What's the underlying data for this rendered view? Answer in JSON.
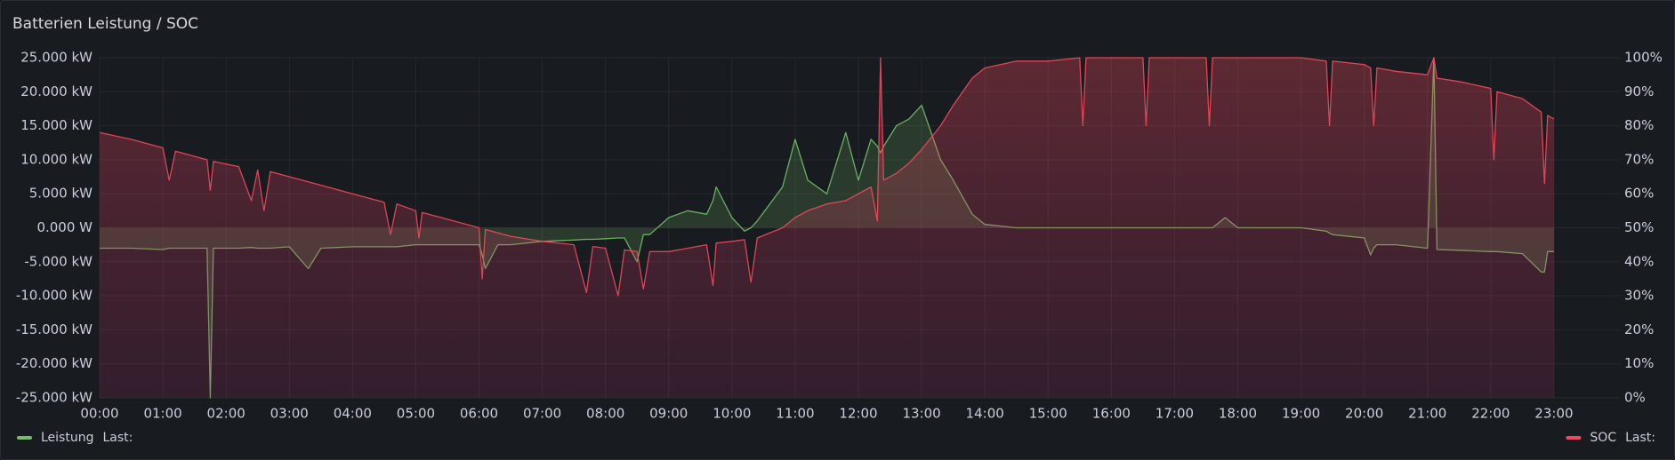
{
  "chart_data": {
    "type": "line",
    "title": "Batterien Leistung / SOC",
    "legend_calc": "Last:",
    "grid": true,
    "x": [
      0,
      0.5,
      1,
      1.1,
      1.2,
      1.7,
      1.75,
      1.8,
      2.2,
      2.4,
      2.5,
      2.6,
      2.7,
      3,
      3.3,
      3.5,
      4,
      4.5,
      4.6,
      4.7,
      5,
      5.05,
      5.1,
      5.5,
      6,
      6.05,
      6.1,
      6.3,
      6.5,
      7,
      7.5,
      7.7,
      7.8,
      8,
      8.2,
      8.3,
      8.5,
      8.6,
      8.7,
      9,
      9.3,
      9.6,
      9.7,
      9.75,
      10,
      10.2,
      10.3,
      10.4,
      10.8,
      11,
      11.2,
      11.5,
      11.8,
      12,
      12.2,
      12.3,
      12.35,
      12.4,
      12.6,
      12.8,
      13,
      13.3,
      13.5,
      13.8,
      14,
      14.5,
      15,
      15.5,
      15.55,
      15.6,
      16.5,
      16.55,
      16.6,
      17.5,
      17.55,
      17.6,
      17.8,
      18,
      19,
      19.4,
      19.45,
      19.5,
      20,
      20.1,
      20.15,
      20.2,
      20.5,
      21,
      21.1,
      21.15,
      21.5,
      22,
      22.05,
      22.1,
      22.5,
      22.8,
      22.85,
      22.9,
      23
    ],
    "xlim": [
      0,
      24
    ],
    "xticks": [
      {
        "value": 0,
        "label": "00:00"
      },
      {
        "value": 1,
        "label": "01:00"
      },
      {
        "value": 2,
        "label": "02:00"
      },
      {
        "value": 3,
        "label": "03:00"
      },
      {
        "value": 4,
        "label": "04:00"
      },
      {
        "value": 5,
        "label": "05:00"
      },
      {
        "value": 6,
        "label": "06:00"
      },
      {
        "value": 7,
        "label": "07:00"
      },
      {
        "value": 8,
        "label": "08:00"
      },
      {
        "value": 9,
        "label": "09:00"
      },
      {
        "value": 10,
        "label": "10:00"
      },
      {
        "value": 11,
        "label": "11:00"
      },
      {
        "value": 12,
        "label": "12:00"
      },
      {
        "value": 13,
        "label": "13:00"
      },
      {
        "value": 14,
        "label": "14:00"
      },
      {
        "value": 15,
        "label": "15:00"
      },
      {
        "value": 16,
        "label": "16:00"
      },
      {
        "value": 17,
        "label": "17:00"
      },
      {
        "value": 18,
        "label": "18:00"
      },
      {
        "value": 19,
        "label": "19:00"
      },
      {
        "value": 20,
        "label": "20:00"
      },
      {
        "value": 21,
        "label": "21:00"
      },
      {
        "value": 22,
        "label": "22:00"
      },
      {
        "value": 23,
        "label": "23:00"
      }
    ],
    "ylim": [
      -25000,
      25000
    ],
    "yticks": [
      {
        "value": 25000,
        "label": "25.000 kW"
      },
      {
        "value": 20000,
        "label": "20.000 kW"
      },
      {
        "value": 15000,
        "label": "15.000 kW"
      },
      {
        "value": 10000,
        "label": "10.000 kW"
      },
      {
        "value": 5000,
        "label": "5.000 kW"
      },
      {
        "value": 0,
        "label": "0.000 W"
      },
      {
        "value": -5000,
        "label": "-5.000 kW"
      },
      {
        "value": -10000,
        "label": "-10.000 kW"
      },
      {
        "value": -15000,
        "label": "-15.000 kW"
      },
      {
        "value": -20000,
        "label": "-20.000 kW"
      },
      {
        "value": -25000,
        "label": "-25.000 kW"
      }
    ],
    "y2lim": [
      0,
      100
    ],
    "y2ticks": [
      {
        "value": 100,
        "label": "100%"
      },
      {
        "value": 90,
        "label": "90%"
      },
      {
        "value": 80,
        "label": "80%"
      },
      {
        "value": 70,
        "label": "70%"
      },
      {
        "value": 60,
        "label": "60%"
      },
      {
        "value": 50,
        "label": "50%"
      },
      {
        "value": 40,
        "label": "40%"
      },
      {
        "value": 30,
        "label": "30%"
      },
      {
        "value": 20,
        "label": "20%"
      },
      {
        "value": 10,
        "label": "10%"
      },
      {
        "value": 0,
        "label": "0%"
      }
    ],
    "series": [
      {
        "name": "Leistung",
        "color": "#73bf69",
        "axis": "y",
        "values": [
          -3000,
          -3000,
          -3200,
          -3000,
          -3000,
          -3000,
          -25000,
          -3000,
          -3000,
          -2900,
          -3000,
          -3000,
          -3000,
          -2800,
          -6000,
          -3000,
          -2800,
          -2800,
          -2800,
          -2800,
          -2500,
          -2500,
          -2500,
          -2500,
          -2500,
          -4000,
          -6000,
          -2500,
          -2500,
          -2000,
          -1800,
          -1700,
          -1700,
          -1600,
          -1500,
          -1500,
          -5000,
          -1000,
          -1000,
          1500,
          2500,
          2000,
          4000,
          6000,
          1500,
          -500,
          0,
          1000,
          6000,
          13000,
          7000,
          5000,
          14000,
          7000,
          13000,
          12000,
          11000,
          12000,
          15000,
          16000,
          18000,
          10000,
          7000,
          2000,
          500,
          0,
          0,
          0,
          0,
          0,
          0,
          0,
          0,
          0,
          0,
          0,
          1500,
          0,
          0,
          -500,
          -800,
          -1000,
          -1500,
          -4000,
          -3000,
          -2500,
          -2500,
          -3000,
          25000,
          -3200,
          -3300,
          -3500,
          -3500,
          -3500,
          -3800,
          -6500,
          -6500,
          -3500,
          -3500
        ]
      },
      {
        "name": "SOC",
        "color": "#f2495c",
        "axis": "y2",
        "values": [
          78,
          76,
          73.5,
          64,
          72.5,
          70,
          61,
          69.5,
          68,
          58,
          67,
          55,
          66.5,
          65,
          63.5,
          62.5,
          60,
          57.5,
          48,
          57,
          55,
          47,
          54.5,
          52.5,
          50,
          35,
          49.5,
          48.5,
          47.5,
          46,
          45,
          31,
          44.5,
          44,
          30,
          43.5,
          43,
          32,
          43,
          43,
          44,
          45,
          33,
          45.5,
          46,
          46.5,
          34,
          47,
          50,
          53,
          55,
          57,
          58,
          60,
          62,
          52,
          100,
          64,
          66,
          69,
          73,
          80,
          86,
          94,
          97,
          99,
          99,
          100,
          80,
          100,
          100,
          80,
          100,
          100,
          80,
          100,
          100,
          100,
          100,
          99,
          80,
          99,
          98,
          97,
          80,
          97,
          96,
          95,
          100,
          94,
          93,
          91,
          70,
          90,
          88,
          84,
          63,
          83,
          82
        ]
      }
    ]
  }
}
